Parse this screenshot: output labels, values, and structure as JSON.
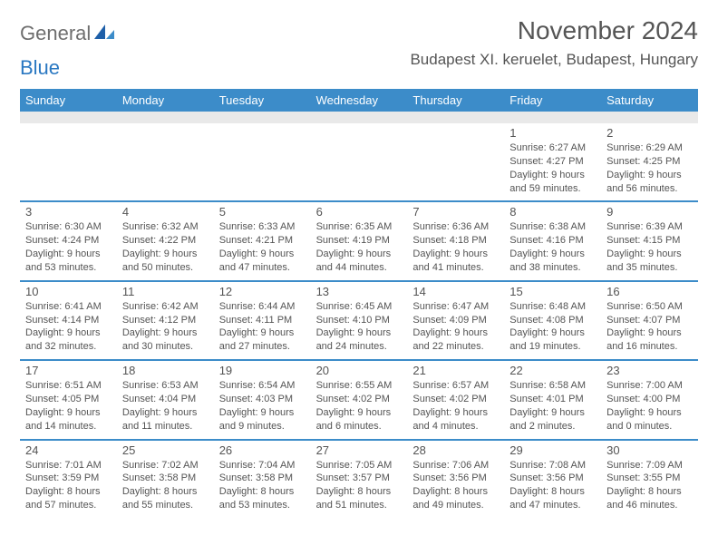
{
  "brand": {
    "part1": "General",
    "part2": "Blue"
  },
  "title": "November 2024",
  "location": "Budapest XI. keruelet, Budapest, Hungary",
  "colors": {
    "header_bg": "#3c8cc9",
    "header_text": "#ffffff",
    "spacer_bg": "#e9e9e9",
    "text": "#545454",
    "brand_gray": "#6e6e6e",
    "brand_blue": "#2a78c2",
    "separator": "#3c8cc9",
    "page_bg": "#ffffff"
  },
  "day_labels": [
    "Sunday",
    "Monday",
    "Tuesday",
    "Wednesday",
    "Thursday",
    "Friday",
    "Saturday"
  ],
  "weeks": [
    [
      {
        "n": "",
        "sunrise": "",
        "sunset": "",
        "daylight": ""
      },
      {
        "n": "",
        "sunrise": "",
        "sunset": "",
        "daylight": ""
      },
      {
        "n": "",
        "sunrise": "",
        "sunset": "",
        "daylight": ""
      },
      {
        "n": "",
        "sunrise": "",
        "sunset": "",
        "daylight": ""
      },
      {
        "n": "",
        "sunrise": "",
        "sunset": "",
        "daylight": ""
      },
      {
        "n": "1",
        "sunrise": "Sunrise: 6:27 AM",
        "sunset": "Sunset: 4:27 PM",
        "daylight": "Daylight: 9 hours and 59 minutes."
      },
      {
        "n": "2",
        "sunrise": "Sunrise: 6:29 AM",
        "sunset": "Sunset: 4:25 PM",
        "daylight": "Daylight: 9 hours and 56 minutes."
      }
    ],
    [
      {
        "n": "3",
        "sunrise": "Sunrise: 6:30 AM",
        "sunset": "Sunset: 4:24 PM",
        "daylight": "Daylight: 9 hours and 53 minutes."
      },
      {
        "n": "4",
        "sunrise": "Sunrise: 6:32 AM",
        "sunset": "Sunset: 4:22 PM",
        "daylight": "Daylight: 9 hours and 50 minutes."
      },
      {
        "n": "5",
        "sunrise": "Sunrise: 6:33 AM",
        "sunset": "Sunset: 4:21 PM",
        "daylight": "Daylight: 9 hours and 47 minutes."
      },
      {
        "n": "6",
        "sunrise": "Sunrise: 6:35 AM",
        "sunset": "Sunset: 4:19 PM",
        "daylight": "Daylight: 9 hours and 44 minutes."
      },
      {
        "n": "7",
        "sunrise": "Sunrise: 6:36 AM",
        "sunset": "Sunset: 4:18 PM",
        "daylight": "Daylight: 9 hours and 41 minutes."
      },
      {
        "n": "8",
        "sunrise": "Sunrise: 6:38 AM",
        "sunset": "Sunset: 4:16 PM",
        "daylight": "Daylight: 9 hours and 38 minutes."
      },
      {
        "n": "9",
        "sunrise": "Sunrise: 6:39 AM",
        "sunset": "Sunset: 4:15 PM",
        "daylight": "Daylight: 9 hours and 35 minutes."
      }
    ],
    [
      {
        "n": "10",
        "sunrise": "Sunrise: 6:41 AM",
        "sunset": "Sunset: 4:14 PM",
        "daylight": "Daylight: 9 hours and 32 minutes."
      },
      {
        "n": "11",
        "sunrise": "Sunrise: 6:42 AM",
        "sunset": "Sunset: 4:12 PM",
        "daylight": "Daylight: 9 hours and 30 minutes."
      },
      {
        "n": "12",
        "sunrise": "Sunrise: 6:44 AM",
        "sunset": "Sunset: 4:11 PM",
        "daylight": "Daylight: 9 hours and 27 minutes."
      },
      {
        "n": "13",
        "sunrise": "Sunrise: 6:45 AM",
        "sunset": "Sunset: 4:10 PM",
        "daylight": "Daylight: 9 hours and 24 minutes."
      },
      {
        "n": "14",
        "sunrise": "Sunrise: 6:47 AM",
        "sunset": "Sunset: 4:09 PM",
        "daylight": "Daylight: 9 hours and 22 minutes."
      },
      {
        "n": "15",
        "sunrise": "Sunrise: 6:48 AM",
        "sunset": "Sunset: 4:08 PM",
        "daylight": "Daylight: 9 hours and 19 minutes."
      },
      {
        "n": "16",
        "sunrise": "Sunrise: 6:50 AM",
        "sunset": "Sunset: 4:07 PM",
        "daylight": "Daylight: 9 hours and 16 minutes."
      }
    ],
    [
      {
        "n": "17",
        "sunrise": "Sunrise: 6:51 AM",
        "sunset": "Sunset: 4:05 PM",
        "daylight": "Daylight: 9 hours and 14 minutes."
      },
      {
        "n": "18",
        "sunrise": "Sunrise: 6:53 AM",
        "sunset": "Sunset: 4:04 PM",
        "daylight": "Daylight: 9 hours and 11 minutes."
      },
      {
        "n": "19",
        "sunrise": "Sunrise: 6:54 AM",
        "sunset": "Sunset: 4:03 PM",
        "daylight": "Daylight: 9 hours and 9 minutes."
      },
      {
        "n": "20",
        "sunrise": "Sunrise: 6:55 AM",
        "sunset": "Sunset: 4:02 PM",
        "daylight": "Daylight: 9 hours and 6 minutes."
      },
      {
        "n": "21",
        "sunrise": "Sunrise: 6:57 AM",
        "sunset": "Sunset: 4:02 PM",
        "daylight": "Daylight: 9 hours and 4 minutes."
      },
      {
        "n": "22",
        "sunrise": "Sunrise: 6:58 AM",
        "sunset": "Sunset: 4:01 PM",
        "daylight": "Daylight: 9 hours and 2 minutes."
      },
      {
        "n": "23",
        "sunrise": "Sunrise: 7:00 AM",
        "sunset": "Sunset: 4:00 PM",
        "daylight": "Daylight: 9 hours and 0 minutes."
      }
    ],
    [
      {
        "n": "24",
        "sunrise": "Sunrise: 7:01 AM",
        "sunset": "Sunset: 3:59 PM",
        "daylight": "Daylight: 8 hours and 57 minutes."
      },
      {
        "n": "25",
        "sunrise": "Sunrise: 7:02 AM",
        "sunset": "Sunset: 3:58 PM",
        "daylight": "Daylight: 8 hours and 55 minutes."
      },
      {
        "n": "26",
        "sunrise": "Sunrise: 7:04 AM",
        "sunset": "Sunset: 3:58 PM",
        "daylight": "Daylight: 8 hours and 53 minutes."
      },
      {
        "n": "27",
        "sunrise": "Sunrise: 7:05 AM",
        "sunset": "Sunset: 3:57 PM",
        "daylight": "Daylight: 8 hours and 51 minutes."
      },
      {
        "n": "28",
        "sunrise": "Sunrise: 7:06 AM",
        "sunset": "Sunset: 3:56 PM",
        "daylight": "Daylight: 8 hours and 49 minutes."
      },
      {
        "n": "29",
        "sunrise": "Sunrise: 7:08 AM",
        "sunset": "Sunset: 3:56 PM",
        "daylight": "Daylight: 8 hours and 47 minutes."
      },
      {
        "n": "30",
        "sunrise": "Sunrise: 7:09 AM",
        "sunset": "Sunset: 3:55 PM",
        "daylight": "Daylight: 8 hours and 46 minutes."
      }
    ]
  ]
}
